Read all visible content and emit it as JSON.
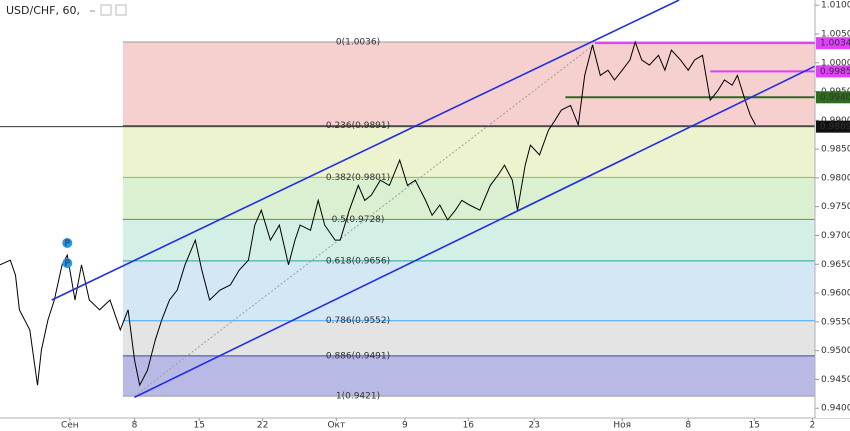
{
  "chart_data": {
    "type": "line",
    "title": "USD/CHF, 60,",
    "xlim": [
      0,
      63
    ],
    "ylim": [
      0.9383,
      1.0109
    ],
    "xticks": [
      {
        "value": 5.4,
        "label": "Сен"
      },
      {
        "value": 10.4,
        "label": "8"
      },
      {
        "value": 15.4,
        "label": "15"
      },
      {
        "value": 20.3,
        "label": "22"
      },
      {
        "value": 26.0,
        "label": "Окт"
      },
      {
        "value": 31.3,
        "label": "9"
      },
      {
        "value": 36.2,
        "label": "16"
      },
      {
        "value": 41.3,
        "label": "23"
      },
      {
        "value": 48.1,
        "label": "Ноя"
      },
      {
        "value": 53.2,
        "label": "8"
      },
      {
        "value": 58.3,
        "label": "15"
      },
      {
        "value": 62.8,
        "label": "2"
      }
    ],
    "yticks": [
      {
        "value": 1.01,
        "label": "1.0100"
      },
      {
        "value": 1.005,
        "label": "1.0050"
      },
      {
        "value": 1.0,
        "label": "1.0000"
      },
      {
        "value": 0.995,
        "label": "0.9950"
      },
      {
        "value": 0.99,
        "label": "0.9900"
      },
      {
        "value": 0.985,
        "label": "0.9850"
      },
      {
        "value": 0.98,
        "label": "0.9800"
      },
      {
        "value": 0.975,
        "label": "0.9750"
      },
      {
        "value": 0.97,
        "label": "0.9700"
      },
      {
        "value": 0.965,
        "label": "0.9650"
      },
      {
        "value": 0.96,
        "label": "0.9600"
      },
      {
        "value": 0.955,
        "label": "0.9550"
      },
      {
        "value": 0.95,
        "label": "0.9500"
      },
      {
        "value": 0.945,
        "label": "0.9450"
      },
      {
        "value": 0.94,
        "label": "0.9400"
      }
    ],
    "fib_start": 9.5,
    "fib_levels": [
      {
        "label": "0(1.0036)",
        "price": 1.0036,
        "color": "#9e9e9e",
        "band_color": "#f6cfcf"
      },
      {
        "label": "0.236(0.9891)",
        "price": 0.9891,
        "color": "#e53935",
        "band_color": "#eef3cf"
      },
      {
        "label": "0.382(0.9801)",
        "price": 0.9801,
        "color": "#8bc34a",
        "band_color": "#daf0d0"
      },
      {
        "label": "0.5(0.9728)",
        "price": 0.9728,
        "color": "#43a047",
        "band_color": "#d4efe6"
      },
      {
        "label": "0.618(0.9656)",
        "price": 0.9656,
        "color": "#26a69a",
        "band_color": "#d4e7f5"
      },
      {
        "label": "0.786(0.9552)",
        "price": 0.9552,
        "color": "#42a5f5",
        "band_color": "#e4e4e4"
      },
      {
        "label": "0.886(0.9491)",
        "price": 0.9491,
        "color": "#3949ab",
        "band_color": "#b9b9e6"
      },
      {
        "label": "1(0.9421)",
        "price": 0.9421,
        "color": "#9e9e9e"
      }
    ],
    "fib_trend": {
      "x": [
        10.4,
        46.2
      ],
      "values": [
        0.9421,
        1.0036
      ],
      "color": "#9e9e9e"
    },
    "trend_lines": [
      {
        "color": "#1f2fe0",
        "x": [
          4.0,
          52.5
        ],
        "values": [
          0.9588,
          1.0109
        ]
      },
      {
        "color": "#1f2fe0",
        "x": [
          10.4,
          63
        ],
        "values": [
          0.9419,
          0.9994
        ]
      }
    ],
    "price_lines": [
      {
        "value": 1.0034,
        "label": "1.0034",
        "color": "#e040fb",
        "start": 46.0
      },
      {
        "value": 0.9985,
        "label": "0.9985",
        "color": "#e040fb",
        "start": 54.9
      },
      {
        "value": 0.994,
        "label": "0.9940",
        "color": "#2e6b1f",
        "start": 43.7
      },
      {
        "value": 0.9889,
        "label": "0.9889",
        "color": "#111111",
        "start": 0
      }
    ],
    "markers": [
      {
        "label": "P",
        "x": 5.2,
        "price": 0.9687,
        "color": "#2196f3"
      },
      {
        "label": "P",
        "x": 5.2,
        "price": 0.9652,
        "color": "#2196f3"
      }
    ],
    "series": [
      {
        "name": "USD/CHF",
        "color": "#000000",
        "x": [
          0,
          0.8,
          1.2,
          1.5,
          2.3,
          2.9,
          3.2,
          3.7,
          4.2,
          4.8,
          5.2,
          5.8,
          6.3,
          6.9,
          7.7,
          8.5,
          9.3,
          9.9,
          10.4,
          10.8,
          11.4,
          12.0,
          12.5,
          13.1,
          13.7,
          14.3,
          15.1,
          15.6,
          16.2,
          17.0,
          17.8,
          18.5,
          19.2,
          19.7,
          20.2,
          20.9,
          21.6,
          22.3,
          22.8,
          23.2,
          24.0,
          24.6,
          25.1,
          25.9,
          26.3,
          27.0,
          27.7,
          28.2,
          28.7,
          29.4,
          30.1,
          30.9,
          31.5,
          32.1,
          32.9,
          33.4,
          34.0,
          34.6,
          35.2,
          35.7,
          36.3,
          37.1,
          37.9,
          38.5,
          39.0,
          39.6,
          40.0,
          40.6,
          41.0,
          41.7,
          42.4,
          42.9,
          43.4,
          44.1,
          44.7,
          45.2,
          45.8,
          46.4,
          47.0,
          47.5,
          48.1,
          48.7,
          49.1,
          49.6,
          50.2,
          50.9,
          51.4,
          51.9,
          52.6,
          53.2,
          53.7,
          54.3,
          54.9,
          55.5,
          56.0,
          56.6,
          57.0,
          57.6,
          58.0,
          58.4
        ],
        "values": [
          0.9649,
          0.9657,
          0.9631,
          0.9571,
          0.9536,
          0.944,
          0.9501,
          0.9553,
          0.9588,
          0.9649,
          0.9666,
          0.9588,
          0.9649,
          0.9588,
          0.9571,
          0.9588,
          0.9536,
          0.9571,
          0.9484,
          0.944,
          0.9466,
          0.9518,
          0.9553,
          0.9588,
          0.9605,
          0.9649,
          0.9692,
          0.964,
          0.9588,
          0.9605,
          0.9614,
          0.964,
          0.9657,
          0.9718,
          0.9744,
          0.9692,
          0.9718,
          0.9649,
          0.9692,
          0.9718,
          0.9709,
          0.9761,
          0.9718,
          0.9692,
          0.9692,
          0.9744,
          0.9787,
          0.9761,
          0.977,
          0.9796,
          0.9787,
          0.9831,
          0.9787,
          0.9796,
          0.9761,
          0.9735,
          0.9753,
          0.9727,
          0.9744,
          0.9761,
          0.9753,
          0.9744,
          0.9787,
          0.9805,
          0.9822,
          0.9796,
          0.9744,
          0.9822,
          0.9857,
          0.984,
          0.9883,
          0.99,
          0.9918,
          0.9926,
          0.9892,
          0.9978,
          1.0031,
          0.9978,
          0.9987,
          0.997,
          0.9987,
          1.0005,
          1.0036,
          1.0005,
          0.9996,
          1.0013,
          0.9987,
          1.0022,
          1.0005,
          0.9987,
          1.0005,
          1.0013,
          0.9935,
          0.9952,
          0.997,
          0.9961,
          0.9978,
          0.9935,
          0.9909,
          0.9892
        ]
      }
    ]
  }
}
